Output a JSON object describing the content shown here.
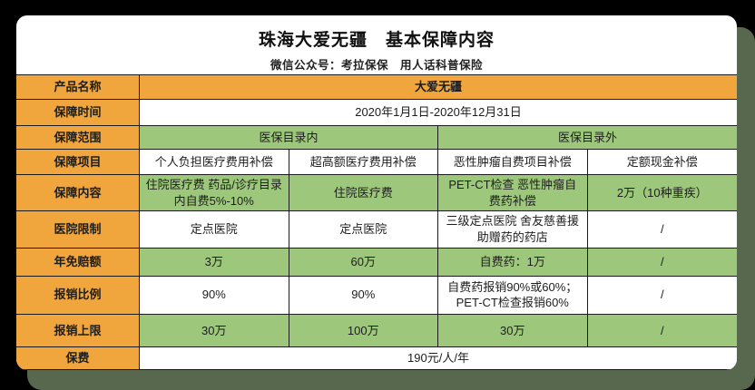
{
  "page": {
    "background_color": "#000000",
    "card_color": "#ffffff",
    "accent_corner_color": "#57684f"
  },
  "colors": {
    "orange_header": "#F0A63C",
    "green_cell": "#9DC87C",
    "border": "#1b1b1b"
  },
  "header": {
    "title": "珠海大爱无疆　基本保障内容",
    "subtitle": "微信公众号：考拉保保　用人话科普保险"
  },
  "table": {
    "rows": [
      {
        "label": "产品名称",
        "cells": [
          "大爱无疆"
        ]
      },
      {
        "label": "保障时间",
        "cells": [
          "2020年1月1日-2020年12月31日"
        ]
      },
      {
        "label": "保障范围",
        "cells": [
          "医保目录内",
          "医保目录外"
        ]
      },
      {
        "label": "保障项目",
        "cells": [
          "个人负担医疗费用补偿",
          "超高额医疗费用补偿",
          "恶性肿瘤自费项目补偿",
          "定额现金补偿"
        ]
      },
      {
        "label": "保障内容",
        "cells": [
          "住院医疗费 药品/诊疗目录内自费5%-10%",
          "住院医疗费",
          "PET-CT检查 恶性肿瘤自费药补偿",
          "2万（10种重疾）"
        ]
      },
      {
        "label": "医院限制",
        "cells": [
          "定点医院",
          "定点医院",
          "三级定点医院 舍友慈善援助赠药的药店",
          "/"
        ]
      },
      {
        "label": "年免赔额",
        "cells": [
          "3万",
          "60万",
          "自费药：1万",
          "/"
        ]
      },
      {
        "label": "报销比例",
        "cells": [
          "90%",
          "90%",
          "自费药报销90%或60%；PET-CT检查报销60%",
          "/"
        ]
      },
      {
        "label": "报销上限",
        "cells": [
          "30万",
          "100万",
          "30万",
          "/"
        ]
      },
      {
        "label": "保费",
        "cells": [
          "190元/人/年"
        ]
      }
    ]
  }
}
